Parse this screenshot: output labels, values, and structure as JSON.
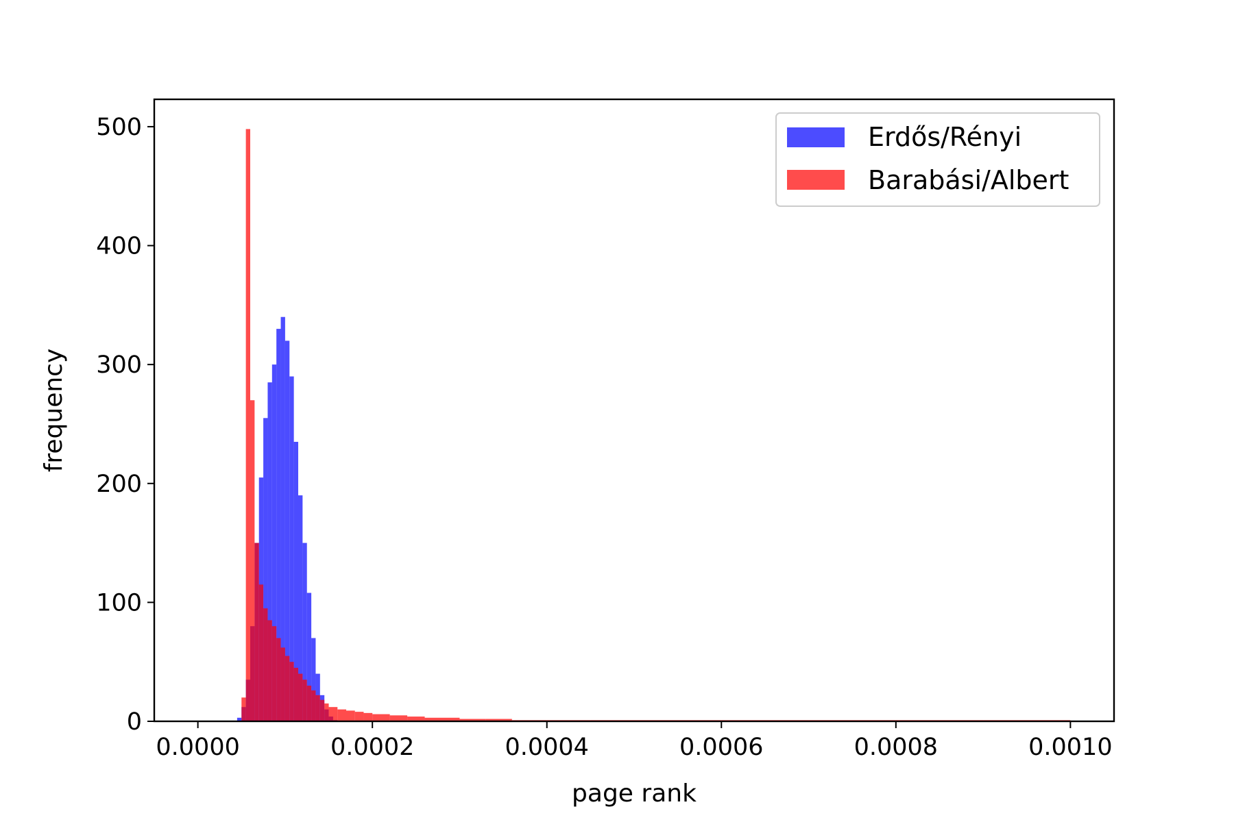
{
  "chart_data": {
    "type": "histogram",
    "title": "",
    "xlabel": "page rank",
    "ylabel": "frequency",
    "xlim": [
      -5e-05,
      0.00105
    ],
    "ylim": [
      0,
      523
    ],
    "x_ticks": [
      0.0,
      0.0002,
      0.0004,
      0.0006,
      0.0008,
      0.001
    ],
    "x_tick_labels": [
      "0.0000",
      "0.0002",
      "0.0004",
      "0.0006",
      "0.0008",
      "0.0010"
    ],
    "y_ticks": [
      0,
      100,
      200,
      300,
      400,
      500
    ],
    "y_tick_labels": [
      "0",
      "100",
      "200",
      "300",
      "400",
      "500"
    ],
    "grid": false,
    "legend_position": "top-right",
    "series": [
      {
        "name": "Erdős/Rényi",
        "color": "#0000ff",
        "opacity": 0.7,
        "bin_edges": [
          4.5e-05,
          5e-05,
          5.5e-05,
          6e-05,
          6.5e-05,
          7e-05,
          7.5e-05,
          8e-05,
          8.5e-05,
          9e-05,
          9.5e-05,
          0.0001,
          0.000105,
          0.00011,
          0.000115,
          0.00012,
          0.000125,
          0.00013,
          0.000135,
          0.00014,
          0.000145,
          0.00015,
          0.000155,
          0.00016
        ],
        "counts": [
          3,
          12,
          35,
          80,
          150,
          205,
          255,
          285,
          300,
          330,
          340,
          320,
          290,
          235,
          190,
          150,
          108,
          70,
          40,
          22,
          10,
          4,
          1
        ]
      },
      {
        "name": "Barabási/Albert",
        "color": "#ff0000",
        "opacity": 0.7,
        "bin_edges": [
          5e-05,
          5.5e-05,
          6e-05,
          6.5e-05,
          7e-05,
          7.5e-05,
          8e-05,
          8.5e-05,
          9e-05,
          9.5e-05,
          0.0001,
          0.000105,
          0.00011,
          0.000115,
          0.00012,
          0.000125,
          0.00013,
          0.000135,
          0.00014,
          0.000145,
          0.00015,
          0.00016,
          0.00017,
          0.00018,
          0.00019,
          0.0002,
          0.00022,
          0.00024,
          0.00026,
          0.00028,
          0.0003,
          0.00033,
          0.00036,
          0.0004,
          0.00045,
          0.0005,
          0.0006,
          0.0007,
          0.0008,
          0.0009,
          0.001
        ],
        "counts": [
          20,
          498,
          270,
          150,
          115,
          95,
          85,
          80,
          70,
          62,
          55,
          50,
          45,
          40,
          35,
          30,
          26,
          22,
          18,
          15,
          12,
          10,
          9,
          8,
          7,
          6,
          5,
          4,
          3,
          3,
          2,
          2,
          1,
          1,
          1,
          1,
          1,
          1,
          1,
          1
        ]
      }
    ]
  }
}
